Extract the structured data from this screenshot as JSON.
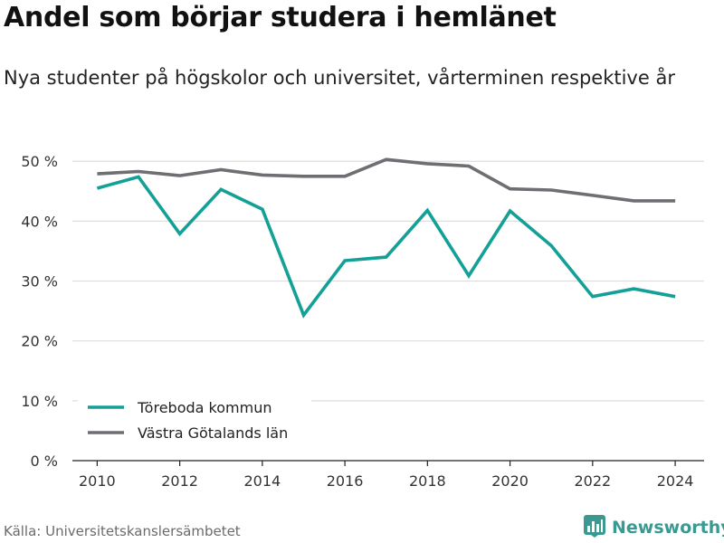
{
  "title": "Andel som börjar studera i hemlänet",
  "subtitle": "Nya studenter på högskolor och universitet, vårterminen respektive år",
  "source": "Källa: Universitetskanslersämbetet",
  "brand": {
    "name": "Newsworthy",
    "icon": "bar-chart-logo-icon",
    "color": "#3a9a92"
  },
  "chart_data": {
    "type": "line",
    "x": [
      2010,
      2011,
      2012,
      2013,
      2014,
      2015,
      2016,
      2017,
      2018,
      2019,
      2020,
      2021,
      2022,
      2023,
      2024
    ],
    "xticks": [
      "2010",
      "2012",
      "2014",
      "2016",
      "2018",
      "2020",
      "2022",
      "2024"
    ],
    "xtick_values": [
      2010,
      2012,
      2014,
      2016,
      2018,
      2020,
      2022,
      2024
    ],
    "yticks": [
      "0 %",
      "10 %",
      "20 %",
      "30 %",
      "40 %",
      "50 %"
    ],
    "ytick_values": [
      0,
      10,
      20,
      30,
      40,
      50
    ],
    "ylim": [
      0,
      52
    ],
    "xlim": [
      2009.4,
      2024.7
    ],
    "grid": true,
    "legend_position": "bottom-left",
    "series": [
      {
        "name": "Töreboda kommun",
        "color": "#13a096",
        "values": [
          45.5,
          47.4,
          37.9,
          45.3,
          42.0,
          24.3,
          33.4,
          34.0,
          41.8,
          30.9,
          41.7,
          35.9,
          27.4,
          28.7,
          27.4
        ]
      },
      {
        "name": "Västra Götalands län",
        "color": "#6e6e73",
        "values": [
          47.9,
          48.3,
          47.6,
          48.6,
          47.7,
          47.5,
          47.5,
          50.3,
          49.6,
          49.2,
          45.4,
          45.2,
          44.3,
          43.4,
          43.4
        ]
      }
    ]
  }
}
